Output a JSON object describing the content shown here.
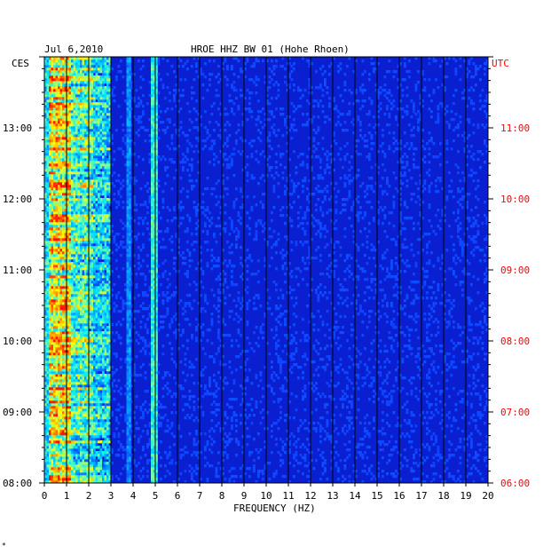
{
  "chart_data": {
    "type": "heatmap",
    "title": "HROE HHZ BW 01 (Hohe Rhoen)",
    "date": "Jul 6,2010",
    "left_axis_label": "CES",
    "right_axis_label": "UTC",
    "xlabel": "FREQUENCY (HZ)",
    "x_ticks": [
      "0",
      "1",
      "2",
      "3",
      "4",
      "5",
      "6",
      "7",
      "8",
      "9",
      "10",
      "11",
      "12",
      "13",
      "14",
      "15",
      "16",
      "17",
      "18",
      "19",
      "20"
    ],
    "xlim": [
      0,
      20
    ],
    "ylim_hours": [
      8,
      14
    ],
    "y_ticks_left": [
      {
        "h": 8,
        "label": "08:00"
      },
      {
        "h": 9,
        "label": "09:00"
      },
      {
        "h": 10,
        "label": "10:00"
      },
      {
        "h": 11,
        "label": "11:00"
      },
      {
        "h": 12,
        "label": "12:00"
      },
      {
        "h": 13,
        "label": "13:00"
      }
    ],
    "y_ticks_right": [
      {
        "h": 8,
        "label": "06:00"
      },
      {
        "h": 9,
        "label": "07:00"
      },
      {
        "h": 10,
        "label": "08:00"
      },
      {
        "h": 11,
        "label": "09:00"
      },
      {
        "h": 12,
        "label": "10:00"
      },
      {
        "h": 13,
        "label": "11:00"
      }
    ],
    "colors": {
      "background": "#0a1fd0",
      "low": "#0000a0",
      "mid": "#00c0ff",
      "high": "#ffff00",
      "max": "#ff2000",
      "grid": "#000000",
      "right_axis": "#ff0000"
    },
    "spectral_features": [
      {
        "band_hz": [
          0.2,
          3.0
        ],
        "description": "broadband microseism energy, strongest 0.3-1 Hz"
      },
      {
        "band_hz": [
          4.8,
          5.0
        ],
        "description": "persistent narrow line"
      },
      {
        "band_hz": [
          3.7,
          3.8
        ],
        "description": "weak narrow line"
      }
    ]
  },
  "footer_mark": "*"
}
